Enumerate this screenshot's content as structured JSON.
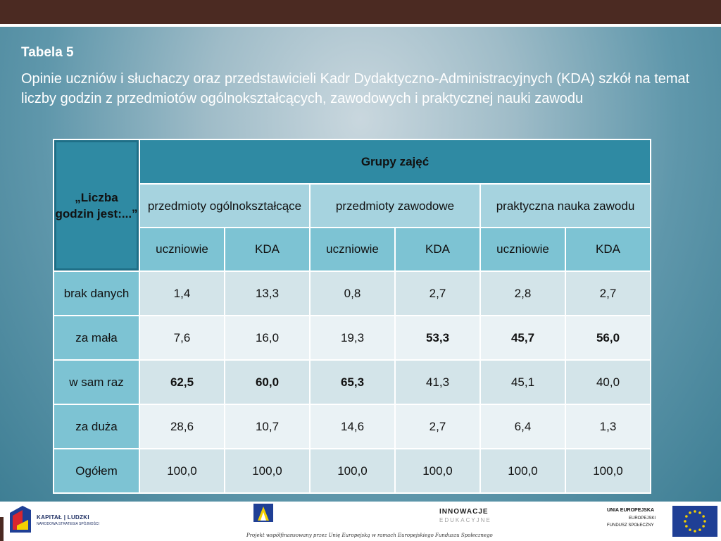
{
  "slide": {
    "label": "Tabela 5",
    "subtitle": "Opinie uczniów i słuchaczy oraz przedstawicieli Kadr Dydaktyczno-Administracyjnych (KDA) szkół na temat liczby godzin z przedmiotów ogólnokształcących, zawodowych i praktycznej nauki zawodu"
  },
  "table": {
    "corner": "„Liczba godzin jest:...”",
    "group_header": "Grupy zajęć",
    "groups": [
      "przedmioty ogólnokształcące",
      "przedmioty zawodowe",
      "praktyczna nauka zawodu"
    ],
    "subheaders": [
      "uczniowie",
      "KDA",
      "uczniowie",
      "KDA",
      "uczniowie",
      "KDA"
    ],
    "rows": [
      {
        "label": "brak danych",
        "values": [
          "1,4",
          "13,3",
          "0,8",
          "2,7",
          "2,8",
          "2,7"
        ]
      },
      {
        "label": "za mała",
        "values": [
          "7,6",
          "16,0",
          "19,3",
          "53,3",
          "45,7",
          "56,0"
        ]
      },
      {
        "label": "w sam raz",
        "values": [
          "62,5",
          "60,0",
          "65,3",
          "41,3",
          "45,1",
          "40,0"
        ]
      },
      {
        "label": "za duża",
        "values": [
          "28,6",
          "10,7",
          "14,6",
          "2,7",
          "6,4",
          "1,3"
        ]
      },
      {
        "label": "Ogółem",
        "values": [
          "100,0",
          "100,0",
          "100,0",
          "100,0",
          "100,0",
          "100,0"
        ]
      }
    ]
  },
  "footer": {
    "kapital_title": "KAPITAŁ | LUDZKI",
    "kapital_sub": "NARODOWA STRATEGIA SPÓJNOŚCI",
    "innowacje_title": "INNOWACJE",
    "innowacje_sub": "EDUKACYJNE",
    "eu_line1": "UNIA EUROPEJSKA",
    "eu_line2": "EUROPEJSKI",
    "eu_line3": "FUNDUSZ SPOŁECZNY",
    "note": "Projekt współfinansowany przez Unię Europejską w ramach Europejskiego Funduszu Społecznego",
    "colors": {
      "brand_dark": "#4b2a22",
      "eu_blue": "#1f3f95",
      "eu_star": "#f4d000"
    }
  }
}
